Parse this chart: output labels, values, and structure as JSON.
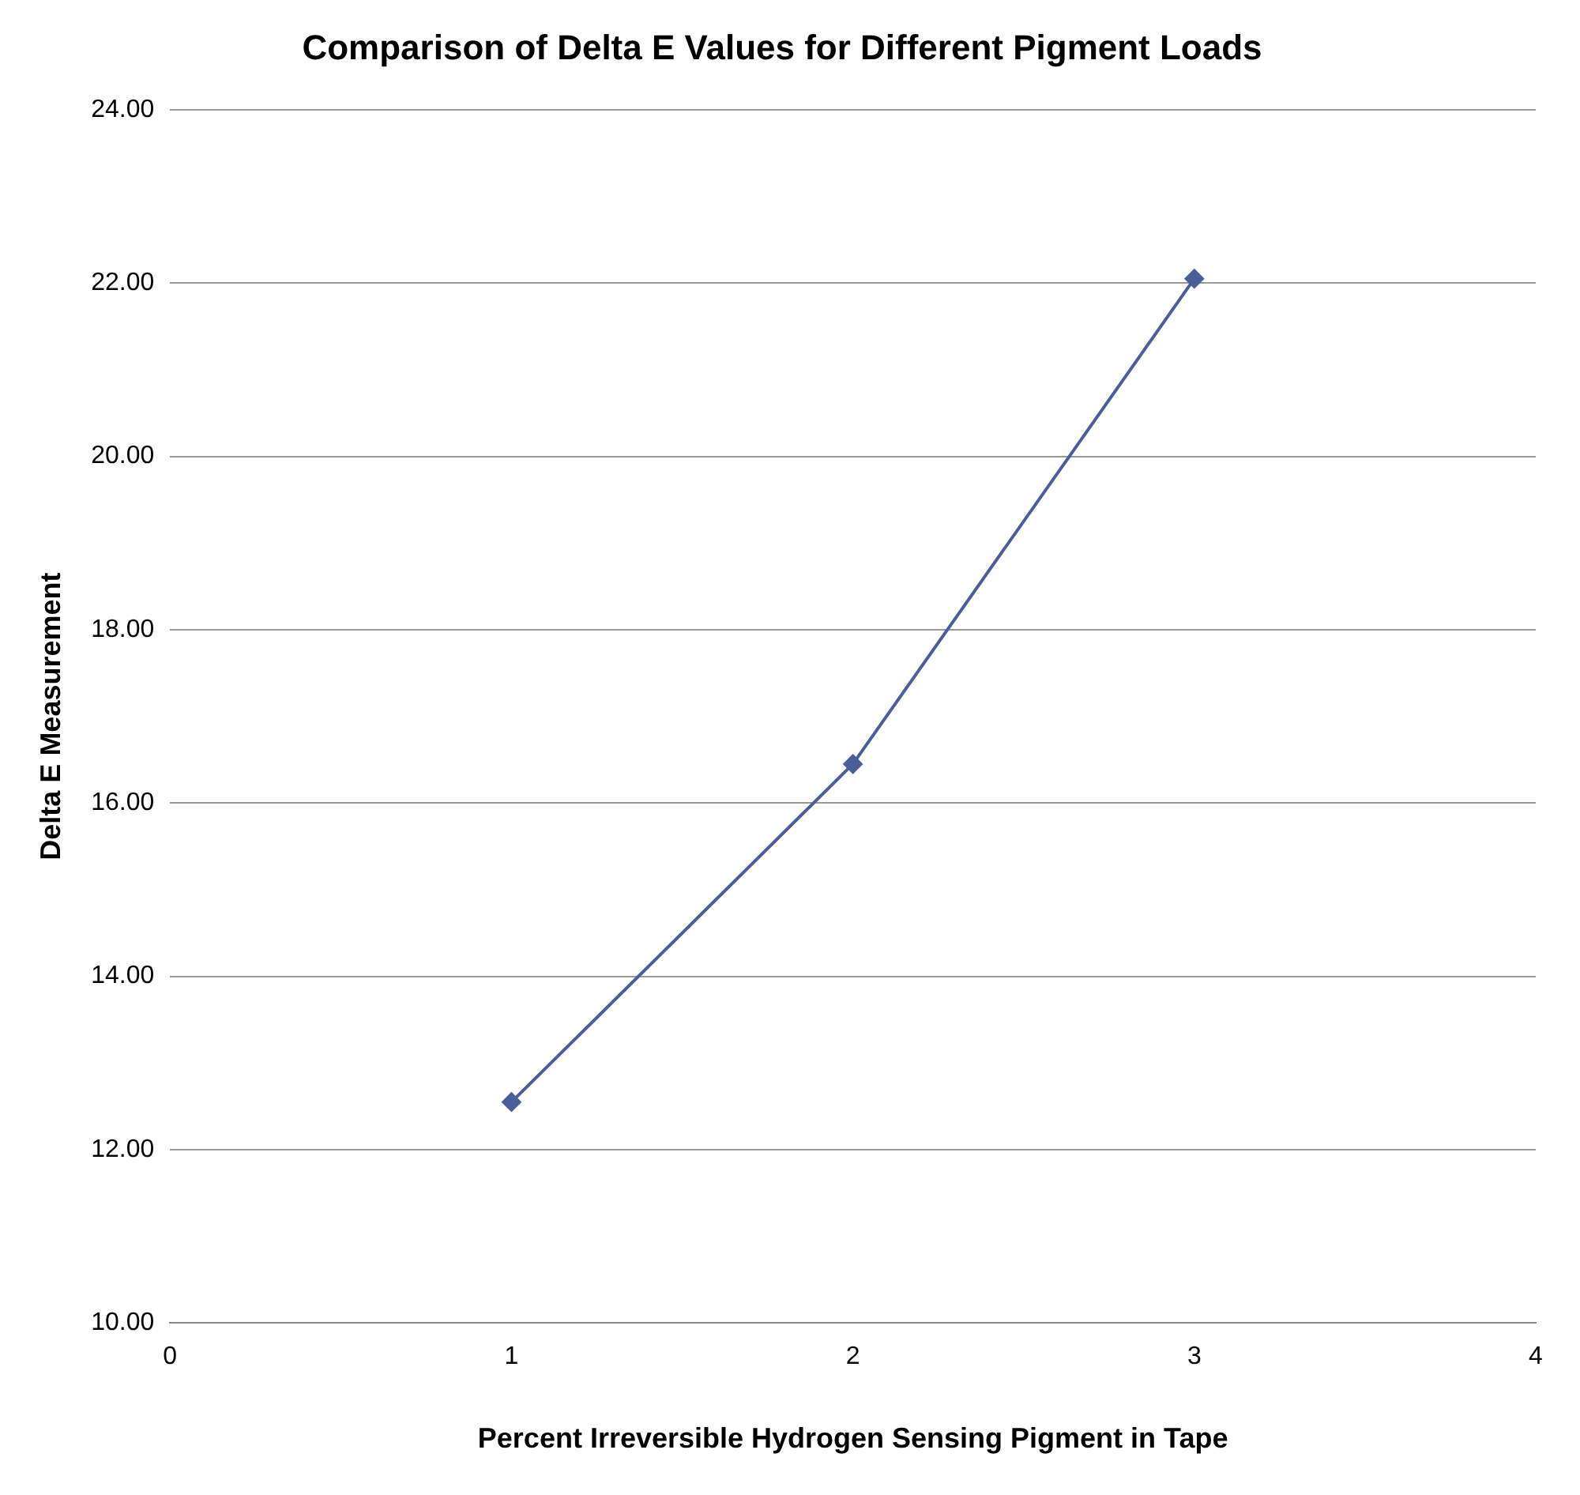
{
  "chart_data": {
    "type": "line",
    "title": "Comparison of Delta E Values for Different Pigment Loads",
    "xlabel": "Percent Irreversible Hydrogen Sensing Pigment in Tape",
    "ylabel": "Delta E Measurement",
    "x": [
      1,
      2,
      3
    ],
    "series": [
      {
        "color": "#4a5f9a",
        "values": [
          12.55,
          16.45,
          22.05
        ]
      }
    ],
    "xlim": [
      0,
      4
    ],
    "xticks": [
      0,
      1,
      2,
      3,
      4
    ],
    "ylim": [
      10,
      24
    ],
    "yticks": [
      {
        "value": 10,
        "label": "10.00"
      },
      {
        "value": 12,
        "label": "12.00"
      },
      {
        "value": 14,
        "label": "14.00"
      },
      {
        "value": 16,
        "label": "16.00"
      },
      {
        "value": 18,
        "label": "18.00"
      },
      {
        "value": 20,
        "label": "20.00"
      },
      {
        "value": 22,
        "label": "22.00"
      },
      {
        "value": 24,
        "label": "24.00"
      }
    ],
    "grid": "y",
    "marker": "diamond",
    "line_style": "solid"
  }
}
